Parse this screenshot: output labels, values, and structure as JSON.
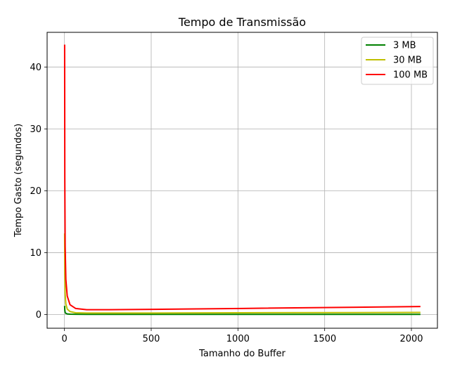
{
  "chart_data": {
    "type": "line",
    "title": "Tempo de Transmissão",
    "xlabel": "Tamanho do Buffer",
    "ylabel": "Tempo Gasto (segundos)",
    "xlim": [
      -100,
      2150
    ],
    "ylim": [
      -2.2,
      45.6
    ],
    "xticks": [
      0,
      500,
      1000,
      1500,
      2000
    ],
    "yticks": [
      0,
      10,
      20,
      30,
      40
    ],
    "grid": true,
    "legend_position": "top-right",
    "series": [
      {
        "name": "3 MB",
        "color": "#008000",
        "x": [
          1,
          2,
          4,
          8,
          16,
          32,
          64,
          128,
          256,
          512,
          1024,
          2048
        ],
        "y": [
          1.3,
          0.7,
          0.35,
          0.2,
          0.12,
          0.07,
          0.05,
          0.04,
          0.04,
          0.04,
          0.04,
          0.04
        ]
      },
      {
        "name": "30 MB",
        "color": "#bfbf00",
        "x": [
          1,
          2,
          4,
          8,
          16,
          32,
          64,
          128,
          256,
          512,
          1024,
          2048
        ],
        "y": [
          13.0,
          6.5,
          3.3,
          1.7,
          0.9,
          0.5,
          0.3,
          0.25,
          0.25,
          0.25,
          0.3,
          0.35
        ]
      },
      {
        "name": "100 MB",
        "color": "#ff0000",
        "x": [
          1,
          2,
          4,
          8,
          16,
          32,
          64,
          128,
          256,
          512,
          1024,
          2048
        ],
        "y": [
          43.5,
          22.0,
          11.0,
          5.7,
          3.0,
          1.6,
          1.0,
          0.8,
          0.8,
          0.85,
          1.0,
          1.3
        ]
      }
    ]
  }
}
